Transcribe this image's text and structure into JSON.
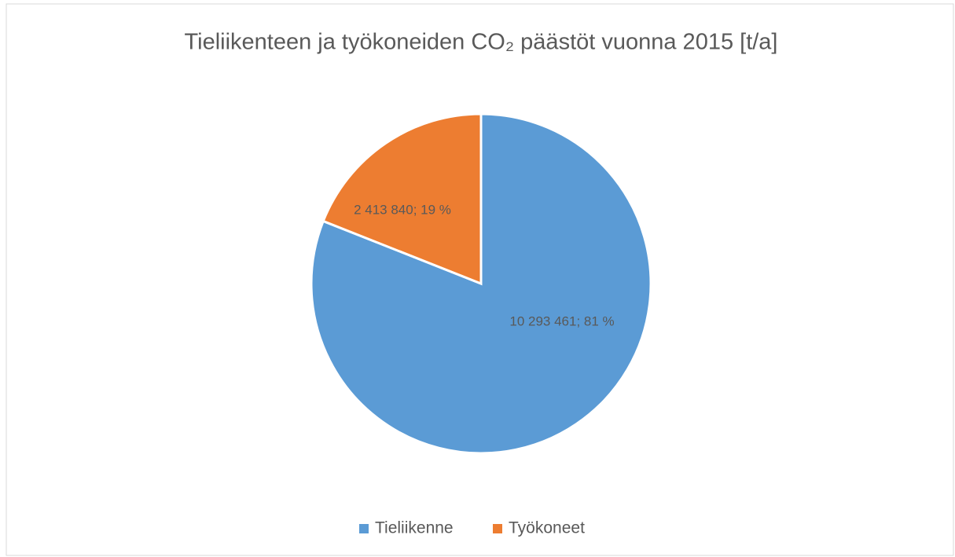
{
  "chart_data": {
    "type": "pie",
    "title": "Tieliikenteen ja työkoneiden CO₂ päästöt vuonna 2015 [t/a]",
    "categories": [
      "Tieliikenne",
      "Työkoneet"
    ],
    "values": [
      10293461,
      2413840
    ],
    "value_labels": [
      "10 293 461; 81 %",
      "2 413 840; 19 %"
    ],
    "colors": [
      "#5b9bd5",
      "#ed7d31"
    ],
    "legend": "bottom"
  }
}
